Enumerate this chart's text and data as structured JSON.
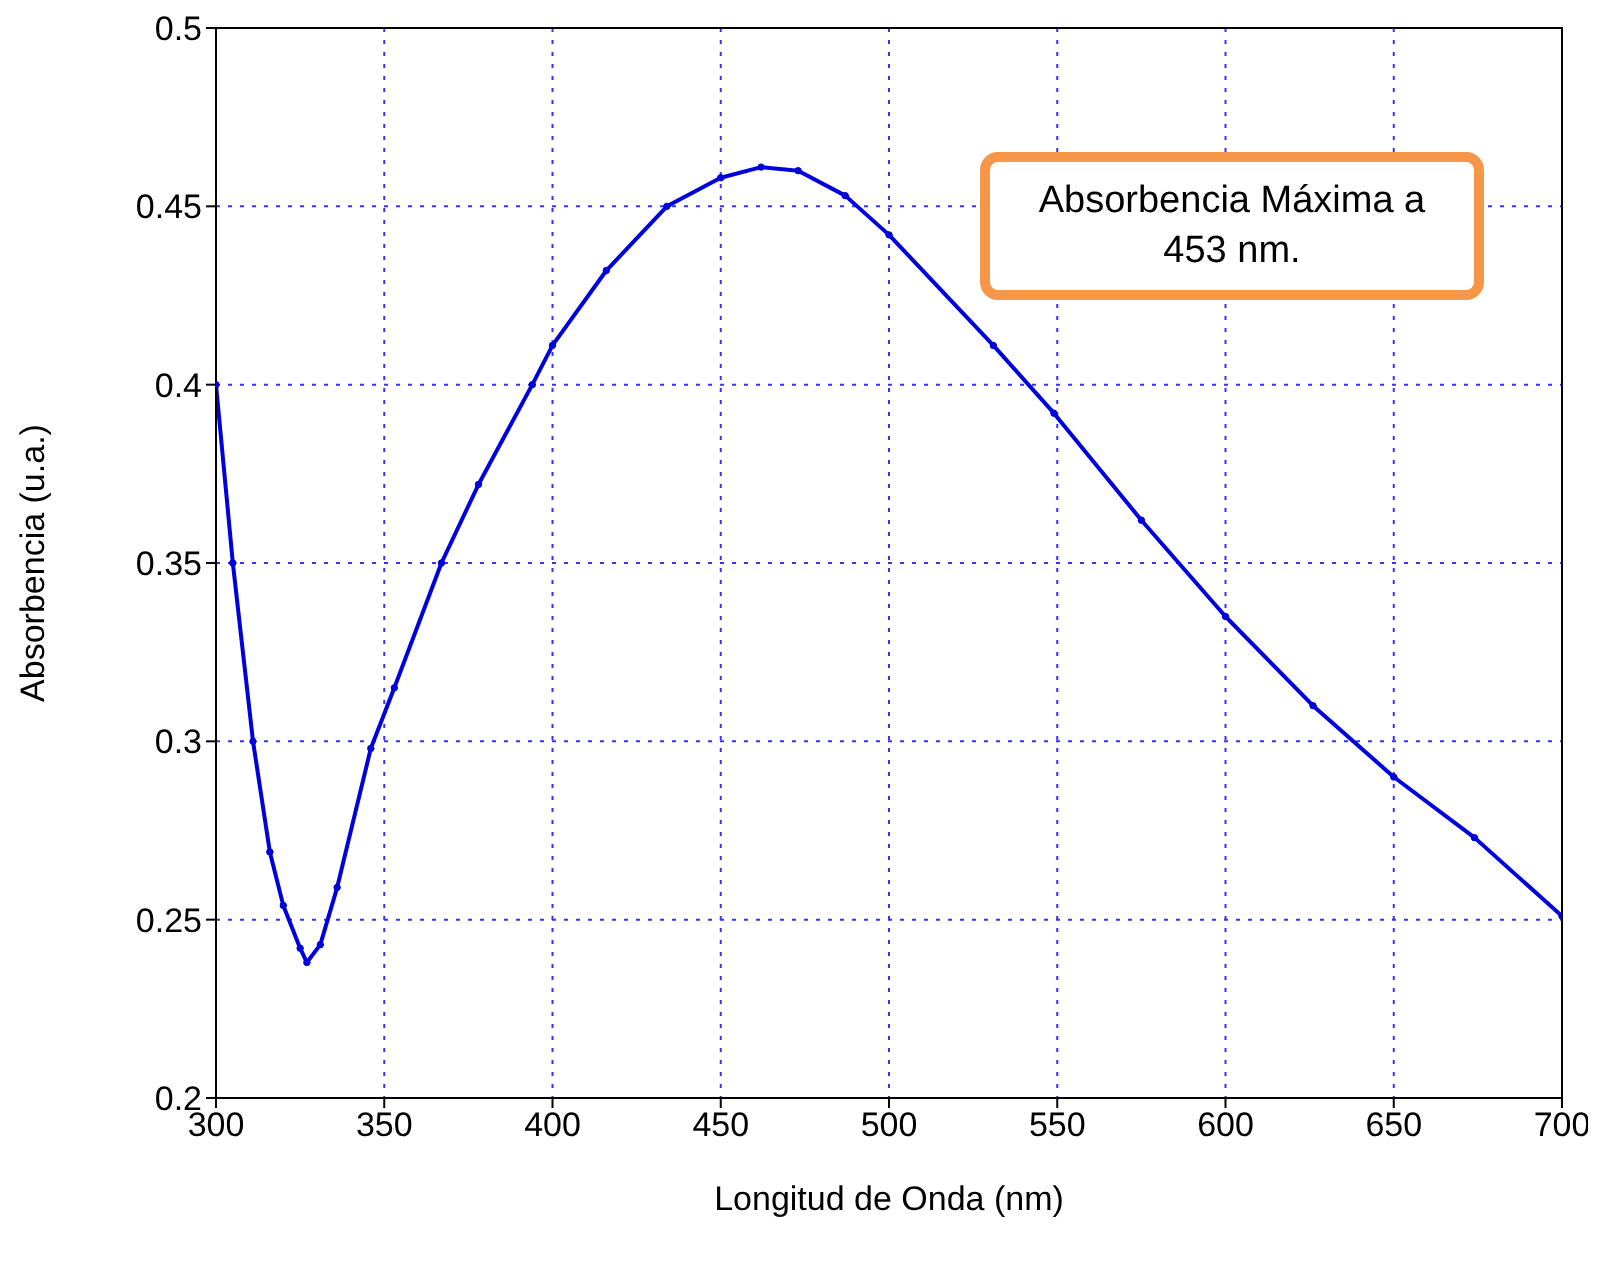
{
  "chart_data": {
    "type": "line",
    "xlabel": "Longitud de Onda (nm)",
    "ylabel": "Absorbencia (u.a.)",
    "annotations": [
      "Absorbencia Máxima a 453 nm."
    ],
    "xlim": [
      300,
      700
    ],
    "xticks": [
      300,
      350,
      400,
      450,
      500,
      550,
      600,
      650,
      700
    ],
    "ylim": [
      0.2,
      0.5
    ],
    "yticks": [
      0.2,
      0.25,
      0.3,
      0.35,
      0.4,
      0.45,
      0.5
    ],
    "grid": true,
    "marker": "circle",
    "line_style": "solid",
    "series": [
      {
        "color": "#0000dd",
        "x": [
          300,
          305,
          311,
          316,
          320,
          325,
          327,
          331,
          336,
          346,
          353,
          367,
          378,
          394,
          400,
          416,
          434,
          450,
          462,
          473,
          487,
          500,
          531,
          549,
          575,
          600,
          626,
          650,
          674,
          700
        ],
        "values": [
          0.4,
          0.35,
          0.3,
          0.269,
          0.254,
          0.242,
          0.238,
          0.243,
          0.259,
          0.298,
          0.315,
          0.35,
          0.372,
          0.4,
          0.411,
          0.432,
          0.45,
          0.458,
          0.461,
          0.46,
          0.453,
          0.442,
          0.411,
          0.392,
          0.362,
          0.335,
          0.31,
          0.29,
          0.273,
          0.251
        ]
      }
    ]
  }
}
